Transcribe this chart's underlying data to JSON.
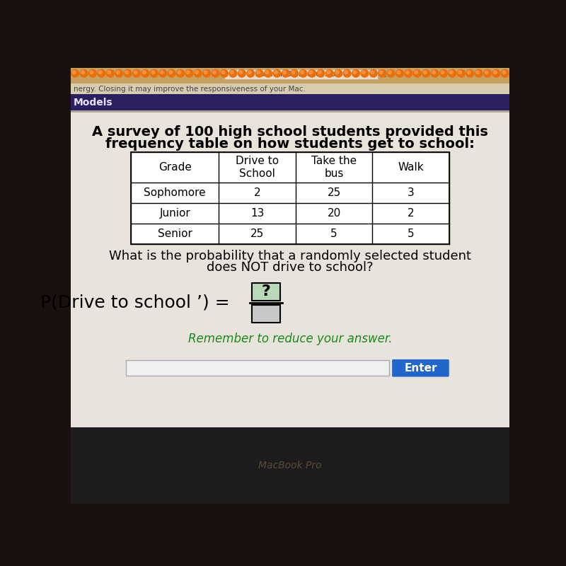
{
  "title_line1": "A survey of 100 high school students provided this",
  "title_line2": "frequency table on how students get to school:",
  "col_headers": [
    "Grade",
    "Drive to\nSchool",
    "Take the\nbus",
    "Walk"
  ],
  "rows": [
    [
      "Sophomore",
      "2",
      "25",
      "3"
    ],
    [
      "Junior",
      "13",
      "20",
      "2"
    ],
    [
      "Senior",
      "25",
      "5",
      "5"
    ]
  ],
  "question_line1": "What is the probability that a randomly selected student",
  "question_line2": "does NOT drive to school?",
  "prob_label": "P(Drive to school ’) =",
  "numerator_text": "?",
  "numerator_bg": "#b8d8b8",
  "denominator_bg": "#c8c8c8",
  "reminder_text": "Remember to reduce your answer.",
  "reminder_color": "#1a8a1a",
  "enter_button_text": "Enter",
  "enter_button_color": "#2266cc",
  "bg_color": "#d8d0c8",
  "screen_bg": "#e8e4dc",
  "input_box_color": "#f0f0f0",
  "table_bg": "#ffffff",
  "text_color": "#000000",
  "browser_bar_color": "#c8b898",
  "browser_dark_color": "#3a3060",
  "macbook_color": "#1a1a1a",
  "notification_bg": "#d8c8a8",
  "url_bar_color": "#e8e0d0",
  "title_fontsize": 14,
  "body_fontsize": 11
}
